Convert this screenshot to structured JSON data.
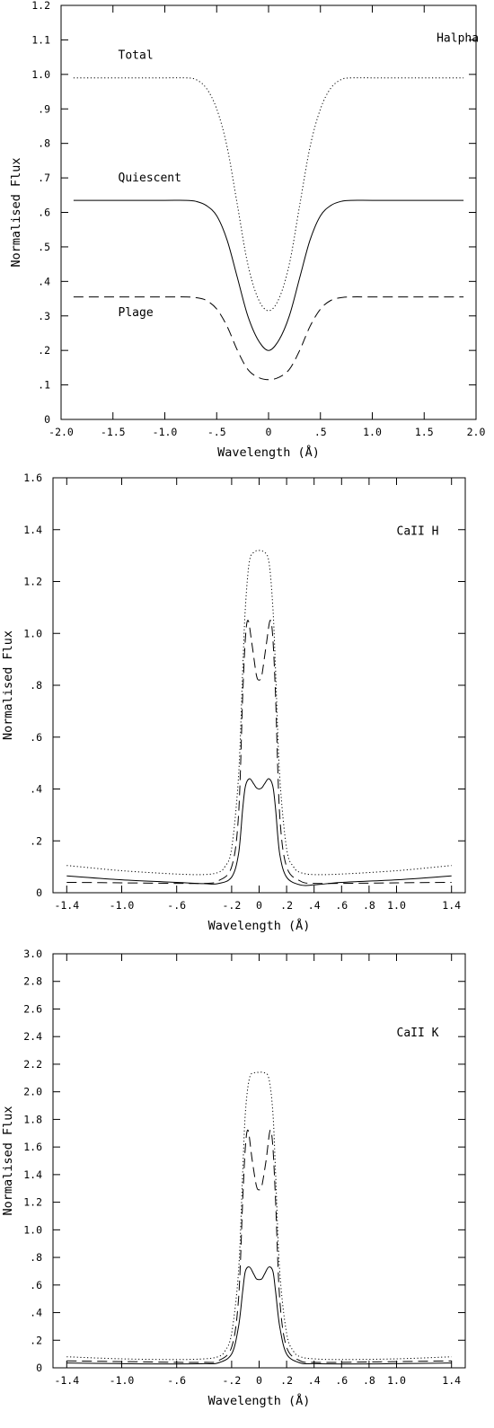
{
  "chart_data": [
    {
      "type": "line",
      "panel": "Halpha",
      "annotations": [
        {
          "text": "Halpha",
          "x": 1.62,
          "y": 1.095
        },
        {
          "text": "Total",
          "x": -1.45,
          "y": 1.045
        },
        {
          "text": "Quiescent",
          "x": -1.45,
          "y": 0.69
        },
        {
          "text": "Plage",
          "x": -1.45,
          "y": 0.3
        }
      ],
      "xlabel": "Wavelength (Å)",
      "ylabel": "Normalised Flux",
      "xlim": [
        -2.0,
        2.0
      ],
      "ylim": [
        0,
        1.2
      ],
      "x_ticks": [
        -2.0,
        -1.5,
        -1.0,
        -0.5,
        0,
        0.5,
        1.0,
        1.5,
        2.0
      ],
      "x_tick_labels": [
        "-2.0",
        "-1.5",
        "-1.0",
        "-.5",
        "0",
        ".5",
        "1.0",
        "1.5",
        "2.0"
      ],
      "y_ticks": [
        0,
        0.1,
        0.2,
        0.3,
        0.4,
        0.5,
        0.6,
        0.7,
        0.8,
        0.9,
        1.0,
        1.1,
        1.2
      ],
      "y_tick_labels": [
        "0",
        ".1",
        ".2",
        ".3",
        ".4",
        ".5",
        ".6",
        ".7",
        ".8",
        ".9",
        "1.0",
        "1.1",
        "1.2"
      ],
      "grid": false,
      "series": [
        {
          "name": "Total",
          "style": "dotted",
          "x": [
            -1.88,
            -1.4,
            -1.0,
            -0.8,
            -0.7,
            -0.6,
            -0.5,
            -0.4,
            -0.3,
            -0.2,
            -0.1,
            0,
            0.1,
            0.2,
            0.3,
            0.4,
            0.5,
            0.6,
            0.7,
            0.8,
            1.0,
            1.4,
            1.88
          ],
          "y": [
            0.99,
            0.99,
            0.99,
            0.99,
            0.985,
            0.96,
            0.9,
            0.79,
            0.62,
            0.45,
            0.35,
            0.315,
            0.35,
            0.45,
            0.62,
            0.79,
            0.9,
            0.96,
            0.985,
            0.99,
            0.99,
            0.99,
            0.99
          ]
        },
        {
          "name": "Quiescent",
          "style": "solid",
          "x": [
            -1.88,
            -1.4,
            -1.0,
            -0.8,
            -0.7,
            -0.6,
            -0.5,
            -0.4,
            -0.3,
            -0.2,
            -0.1,
            0,
            0.1,
            0.2,
            0.3,
            0.4,
            0.5,
            0.6,
            0.7,
            0.8,
            1.0,
            1.4,
            1.88
          ],
          "y": [
            0.635,
            0.635,
            0.635,
            0.635,
            0.632,
            0.62,
            0.59,
            0.52,
            0.41,
            0.3,
            0.23,
            0.2,
            0.23,
            0.3,
            0.41,
            0.52,
            0.59,
            0.62,
            0.632,
            0.635,
            0.635,
            0.635,
            0.635
          ]
        },
        {
          "name": "Plage",
          "style": "dashed",
          "x": [
            -1.88,
            -1.4,
            -1.0,
            -0.8,
            -0.7,
            -0.6,
            -0.5,
            -0.4,
            -0.3,
            -0.2,
            -0.1,
            0,
            0.1,
            0.2,
            0.3,
            0.4,
            0.5,
            0.6,
            0.7,
            0.8,
            1.0,
            1.4,
            1.88
          ],
          "y": [
            0.355,
            0.355,
            0.355,
            0.355,
            0.353,
            0.345,
            0.32,
            0.27,
            0.2,
            0.145,
            0.122,
            0.115,
            0.122,
            0.145,
            0.2,
            0.27,
            0.32,
            0.345,
            0.353,
            0.355,
            0.355,
            0.355,
            0.355
          ]
        }
      ]
    },
    {
      "type": "line",
      "panel": "CaII H",
      "annotations": [
        {
          "text": "CaII H",
          "x": 1.0,
          "y": 1.38
        }
      ],
      "xlabel": "Wavelength (Å)",
      "ylabel": "Normalised Flux",
      "xlim": [
        -1.5,
        1.5
      ],
      "ylim": [
        0,
        1.6
      ],
      "x_ticks": [
        -1.4,
        -1.0,
        -0.6,
        -0.2,
        0,
        0.2,
        0.4,
        0.6,
        0.8,
        1.0,
        1.4
      ],
      "x_tick_labels": [
        "-1.4",
        "-1.0",
        "-.6",
        "-.2",
        "0",
        ".2",
        ".4",
        ".6",
        ".8",
        "1.0",
        "1.4"
      ],
      "y_ticks": [
        0,
        0.2,
        0.4,
        0.6,
        0.8,
        1.0,
        1.2,
        1.4,
        1.6
      ],
      "y_tick_labels": [
        "0",
        ".2",
        ".4",
        ".6",
        ".8",
        "1.0",
        "1.2",
        "1.4",
        "1.6"
      ],
      "grid": false,
      "series": [
        {
          "style": "dotted",
          "x": [
            -1.4,
            -1.0,
            -0.6,
            -0.4,
            -0.3,
            -0.25,
            -0.2,
            -0.15,
            -0.12,
            -0.1,
            -0.07,
            -0.03,
            0,
            0.03,
            0.07,
            0.1,
            0.12,
            0.15,
            0.2,
            0.25,
            0.3,
            0.4,
            0.6,
            1.0,
            1.4
          ],
          "y": [
            0.105,
            0.085,
            0.072,
            0.07,
            0.078,
            0.1,
            0.17,
            0.45,
            0.85,
            1.1,
            1.28,
            1.315,
            1.32,
            1.315,
            1.28,
            1.1,
            0.85,
            0.45,
            0.17,
            0.1,
            0.078,
            0.07,
            0.072,
            0.085,
            0.105
          ]
        },
        {
          "style": "dashed",
          "x": [
            -1.4,
            -1.0,
            -0.6,
            -0.4,
            -0.3,
            -0.2,
            -0.15,
            -0.12,
            -0.1,
            -0.08,
            -0.05,
            -0.02,
            0,
            0.02,
            0.05,
            0.08,
            0.1,
            0.12,
            0.15,
            0.2,
            0.3,
            0.4,
            0.6,
            1.0,
            1.4
          ],
          "y": [
            0.04,
            0.038,
            0.036,
            0.036,
            0.045,
            0.1,
            0.3,
            0.75,
            0.98,
            1.05,
            0.95,
            0.84,
            0.82,
            0.84,
            0.95,
            1.05,
            0.98,
            0.75,
            0.3,
            0.1,
            0.045,
            0.036,
            0.036,
            0.038,
            0.04
          ]
        },
        {
          "style": "solid",
          "x": [
            -1.4,
            -1.0,
            -0.6,
            -0.4,
            -0.3,
            -0.2,
            -0.15,
            -0.12,
            -0.1,
            -0.07,
            -0.04,
            -0.02,
            0,
            0.02,
            0.04,
            0.07,
            0.1,
            0.12,
            0.15,
            0.2,
            0.3,
            0.4,
            0.6,
            1.0,
            1.4
          ],
          "y": [
            0.065,
            0.05,
            0.04,
            0.035,
            0.035,
            0.06,
            0.15,
            0.32,
            0.41,
            0.44,
            0.42,
            0.405,
            0.4,
            0.405,
            0.42,
            0.44,
            0.41,
            0.32,
            0.15,
            0.06,
            0.03,
            0.03,
            0.04,
            0.05,
            0.065
          ]
        }
      ]
    },
    {
      "type": "line",
      "panel": "CaII K",
      "annotations": [
        {
          "text": "CaII K",
          "x": 1.0,
          "y": 2.4
        }
      ],
      "xlabel": "Wavelength (Å)",
      "ylabel": "Normalised Flux",
      "xlim": [
        -1.5,
        1.5
      ],
      "ylim": [
        0,
        3.0
      ],
      "x_ticks": [
        -1.4,
        -1.0,
        -0.6,
        -0.2,
        0,
        0.2,
        0.4,
        0.6,
        0.8,
        1.0,
        1.4
      ],
      "x_tick_labels": [
        "-1.4",
        "-1.0",
        "-.6",
        "-.2",
        "0",
        ".2",
        ".4",
        ".6",
        ".8",
        "1.0",
        "1.4"
      ],
      "y_ticks": [
        0,
        0.2,
        0.4,
        0.6,
        0.8,
        1.0,
        1.2,
        1.4,
        1.6,
        1.8,
        2.0,
        2.2,
        2.4,
        2.6,
        2.8,
        3.0
      ],
      "y_tick_labels": [
        "0",
        ".2",
        ".4",
        ".6",
        ".8",
        "1.0",
        "1.2",
        "1.4",
        "1.6",
        "1.8",
        "2.0",
        "2.2",
        "2.4",
        "2.6",
        "2.8",
        "3.0"
      ],
      "grid": false,
      "series": [
        {
          "style": "dotted",
          "x": [
            -1.4,
            -1.0,
            -0.6,
            -0.4,
            -0.3,
            -0.25,
            -0.2,
            -0.15,
            -0.12,
            -0.1,
            -0.07,
            -0.03,
            0,
            0.03,
            0.07,
            0.1,
            0.12,
            0.15,
            0.2,
            0.25,
            0.3,
            0.4,
            0.6,
            1.0,
            1.4
          ],
          "y": [
            0.08,
            0.065,
            0.06,
            0.065,
            0.08,
            0.12,
            0.25,
            0.7,
            1.4,
            1.85,
            2.1,
            2.14,
            2.14,
            2.14,
            2.1,
            1.85,
            1.4,
            0.7,
            0.25,
            0.12,
            0.08,
            0.065,
            0.06,
            0.065,
            0.08
          ]
        },
        {
          "style": "dashed",
          "x": [
            -1.4,
            -1.0,
            -0.6,
            -0.4,
            -0.3,
            -0.2,
            -0.15,
            -0.12,
            -0.1,
            -0.08,
            -0.05,
            -0.02,
            0,
            0.02,
            0.05,
            0.08,
            0.1,
            0.12,
            0.15,
            0.2,
            0.3,
            0.4,
            0.6,
            1.0,
            1.4
          ],
          "y": [
            0.05,
            0.045,
            0.04,
            0.04,
            0.05,
            0.15,
            0.5,
            1.2,
            1.6,
            1.72,
            1.5,
            1.32,
            1.29,
            1.32,
            1.5,
            1.72,
            1.6,
            1.2,
            0.5,
            0.15,
            0.05,
            0.04,
            0.04,
            0.045,
            0.05
          ]
        },
        {
          "style": "solid",
          "x": [
            -1.4,
            -1.0,
            -0.6,
            -0.4,
            -0.3,
            -0.2,
            -0.15,
            -0.12,
            -0.1,
            -0.07,
            -0.04,
            -0.02,
            0,
            0.02,
            0.04,
            0.07,
            0.1,
            0.12,
            0.15,
            0.2,
            0.3,
            0.4,
            0.6,
            1.0,
            1.4
          ],
          "y": [
            0.035,
            0.03,
            0.028,
            0.03,
            0.035,
            0.1,
            0.3,
            0.55,
            0.7,
            0.73,
            0.68,
            0.645,
            0.64,
            0.645,
            0.68,
            0.73,
            0.7,
            0.55,
            0.3,
            0.1,
            0.035,
            0.03,
            0.028,
            0.03,
            0.035
          ]
        }
      ]
    }
  ]
}
